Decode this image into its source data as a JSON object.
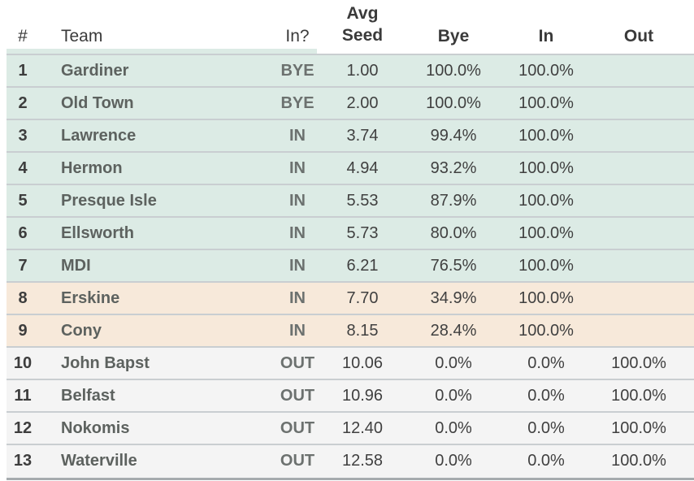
{
  "header": {
    "rank": "#",
    "team": "Team",
    "status": "In?",
    "seed_top": "Avg",
    "seed": "Seed",
    "bye": "Bye",
    "in": "In",
    "out": "Out"
  },
  "chart_data": {
    "type": "table",
    "title": "",
    "columns": [
      "#",
      "Team",
      "In?",
      "Avg Seed",
      "Bye",
      "In",
      "Out"
    ],
    "rows": [
      {
        "rank": "1",
        "team": "Gardiner",
        "status": "BYE",
        "seed": "1.00",
        "bye": "100.0%",
        "in": "100.0%",
        "out": "",
        "section": "safe"
      },
      {
        "rank": "2",
        "team": "Old Town",
        "status": "BYE",
        "seed": "2.00",
        "bye": "100.0%",
        "in": "100.0%",
        "out": "",
        "section": "safe"
      },
      {
        "rank": "3",
        "team": "Lawrence",
        "status": "IN",
        "seed": "3.74",
        "bye": "99.4%",
        "in": "100.0%",
        "out": "",
        "section": "safe"
      },
      {
        "rank": "4",
        "team": "Hermon",
        "status": "IN",
        "seed": "4.94",
        "bye": "93.2%",
        "in": "100.0%",
        "out": "",
        "section": "safe"
      },
      {
        "rank": "5",
        "team": "Presque Isle",
        "status": "IN",
        "seed": "5.53",
        "bye": "87.9%",
        "in": "100.0%",
        "out": "",
        "section": "safe"
      },
      {
        "rank": "6",
        "team": "Ellsworth",
        "status": "IN",
        "seed": "5.73",
        "bye": "80.0%",
        "in": "100.0%",
        "out": "",
        "section": "safe"
      },
      {
        "rank": "7",
        "team": "MDI",
        "status": "IN",
        "seed": "6.21",
        "bye": "76.5%",
        "in": "100.0%",
        "out": "",
        "section": "safe"
      },
      {
        "rank": "8",
        "team": "Erskine",
        "status": "IN",
        "seed": "7.70",
        "bye": "34.9%",
        "in": "100.0%",
        "out": "",
        "section": "bubble"
      },
      {
        "rank": "9",
        "team": "Cony",
        "status": "IN",
        "seed": "8.15",
        "bye": "28.4%",
        "in": "100.0%",
        "out": "",
        "section": "bubble"
      },
      {
        "rank": "10",
        "team": "John Bapst",
        "status": "OUT",
        "seed": "10.06",
        "bye": "0.0%",
        "in": "0.0%",
        "out": "100.0%",
        "section": "out"
      },
      {
        "rank": "11",
        "team": "Belfast",
        "status": "OUT",
        "seed": "10.96",
        "bye": "0.0%",
        "in": "0.0%",
        "out": "100.0%",
        "section": "out"
      },
      {
        "rank": "12",
        "team": "Nokomis",
        "status": "OUT",
        "seed": "12.40",
        "bye": "0.0%",
        "in": "0.0%",
        "out": "100.0%",
        "section": "out"
      },
      {
        "rank": "13",
        "team": "Waterville",
        "status": "OUT",
        "seed": "12.58",
        "bye": "0.0%",
        "in": "0.0%",
        "out": "100.0%",
        "section": "out"
      }
    ]
  },
  "colors": {
    "safe_row_bg": "#dcebe5",
    "bubble_row_bg": "#f7e9da",
    "out_row_bg": "#f4f4f4",
    "separator": "#c9ced1",
    "bottom_border": "#a6abae",
    "header_text": "#3a3a3a",
    "rank_text": "#3d3d3d",
    "team_text": "#5d625f",
    "status_text": "#6c716f",
    "value_text": "#404040"
  }
}
